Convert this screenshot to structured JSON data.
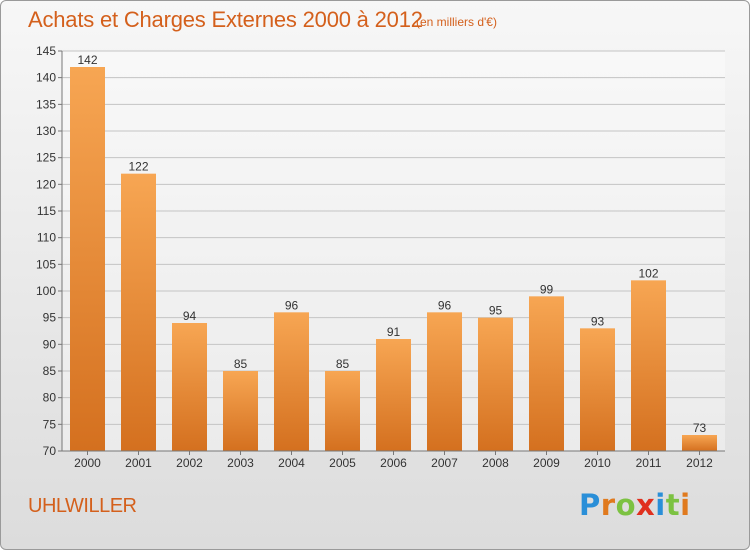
{
  "title": "Achats et Charges Externes 2000 à 2012",
  "subtitle": "(en milliers d'€)",
  "commune": "UHLWILLER",
  "logo": {
    "text": "Proxiti",
    "colors": [
      "#2a8fd8",
      "#e07a1e",
      "#7cc242",
      "#e0301e",
      "#2a8fd8",
      "#7cc242",
      "#e07a1e"
    ]
  },
  "colors": {
    "accent": "#d4601c",
    "bar_light": "#f7a653",
    "bar_dark": "#d4701f"
  },
  "chart_data": {
    "type": "bar",
    "categories": [
      "2000",
      "2001",
      "2002",
      "2003",
      "2004",
      "2005",
      "2006",
      "2007",
      "2008",
      "2009",
      "2010",
      "2011",
      "2012"
    ],
    "values": [
      142,
      122,
      94,
      85,
      96,
      85,
      91,
      96,
      95,
      99,
      93,
      102,
      73
    ],
    "ylim": [
      70,
      145
    ],
    "yticks": [
      70,
      75,
      80,
      85,
      90,
      95,
      100,
      105,
      110,
      115,
      120,
      125,
      130,
      135,
      140,
      145
    ],
    "grid": true,
    "xlabel": "",
    "ylabel": ""
  }
}
